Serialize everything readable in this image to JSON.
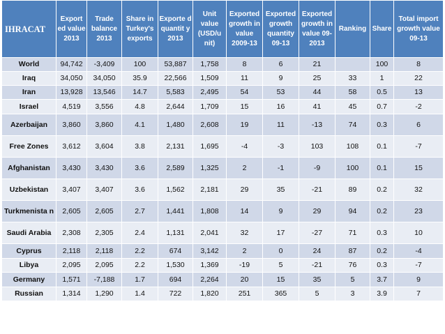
{
  "table": {
    "headers": [
      "IHRACAT",
      "Export ed value 2013",
      "Trade balance 2013",
      "Share in Turkey's exports",
      "Exporte d quantit y 2013",
      "Unit value (USD/u nit)",
      "Exported growth in value 2009-13",
      "Exported growth quantity 09-13",
      "Exported growth in value 09-2013",
      "Ranking",
      "Share",
      "Total import growth value 09-13"
    ],
    "rows": [
      [
        "World",
        "94,742",
        "-3,409",
        "100",
        "53,887",
        "1,758",
        "8",
        "6",
        "21",
        "",
        "100",
        "8"
      ],
      [
        "Iraq",
        "34,050",
        "34,050",
        "35.9",
        "22,566",
        "1,509",
        "11",
        "9",
        "25",
        "33",
        "1",
        "22"
      ],
      [
        "Iran",
        "13,928",
        "13,546",
        "14.7",
        "5,583",
        "2,495",
        "54",
        "53",
        "44",
        "58",
        "0.5",
        "13"
      ],
      [
        "Israel",
        "4,519",
        "3,556",
        "4.8",
        "2,644",
        "1,709",
        "15",
        "16",
        "41",
        "45",
        "0.7",
        "-2"
      ],
      [
        "Azerbaijan",
        "3,860",
        "3,860",
        "4.1",
        "1,480",
        "2,608",
        "19",
        "11",
        "-13",
        "74",
        "0.3",
        "6"
      ],
      [
        "Free Zones",
        "3,612",
        "3,604",
        "3.8",
        "2,131",
        "1,695",
        "-4",
        "-3",
        "103",
        "108",
        "0.1",
        "-7"
      ],
      [
        "Afghanistan",
        "3,430",
        "3,430",
        "3.6",
        "2,589",
        "1,325",
        "2",
        "-1",
        "-9",
        "100",
        "0.1",
        "15"
      ],
      [
        "Uzbekistan",
        "3,407",
        "3,407",
        "3.6",
        "1,562",
        "2,181",
        "29",
        "35",
        "-21",
        "89",
        "0.2",
        "32"
      ],
      [
        "Turkmenista n",
        "2,605",
        "2,605",
        "2.7",
        "1,441",
        "1,808",
        "14",
        "9",
        "29",
        "94",
        "0.2",
        "23"
      ],
      [
        "Saudi Arabia",
        "2,308",
        "2,305",
        "2.4",
        "1,131",
        "2,041",
        "32",
        "17",
        "-27",
        "71",
        "0.3",
        "10"
      ],
      [
        "Cyprus",
        "2,118",
        "2,118",
        "2.2",
        "674",
        "3,142",
        "2",
        "0",
        "24",
        "87",
        "0.2",
        "-4"
      ],
      [
        "Libya",
        "2,095",
        "2,095",
        "2.2",
        "1,530",
        "1,369",
        "-19",
        "5",
        "-21",
        "76",
        "0.3",
        "-7"
      ],
      [
        "Germany",
        "1,571",
        "-7,188",
        "1.7",
        "694",
        "2,264",
        "20",
        "15",
        "35",
        "5",
        "3.7",
        "9"
      ],
      [
        "Russian",
        "1,314",
        "1,290",
        "1.4",
        "722",
        "1,820",
        "251",
        "365",
        "5",
        "3",
        "3.9",
        "7"
      ]
    ]
  }
}
